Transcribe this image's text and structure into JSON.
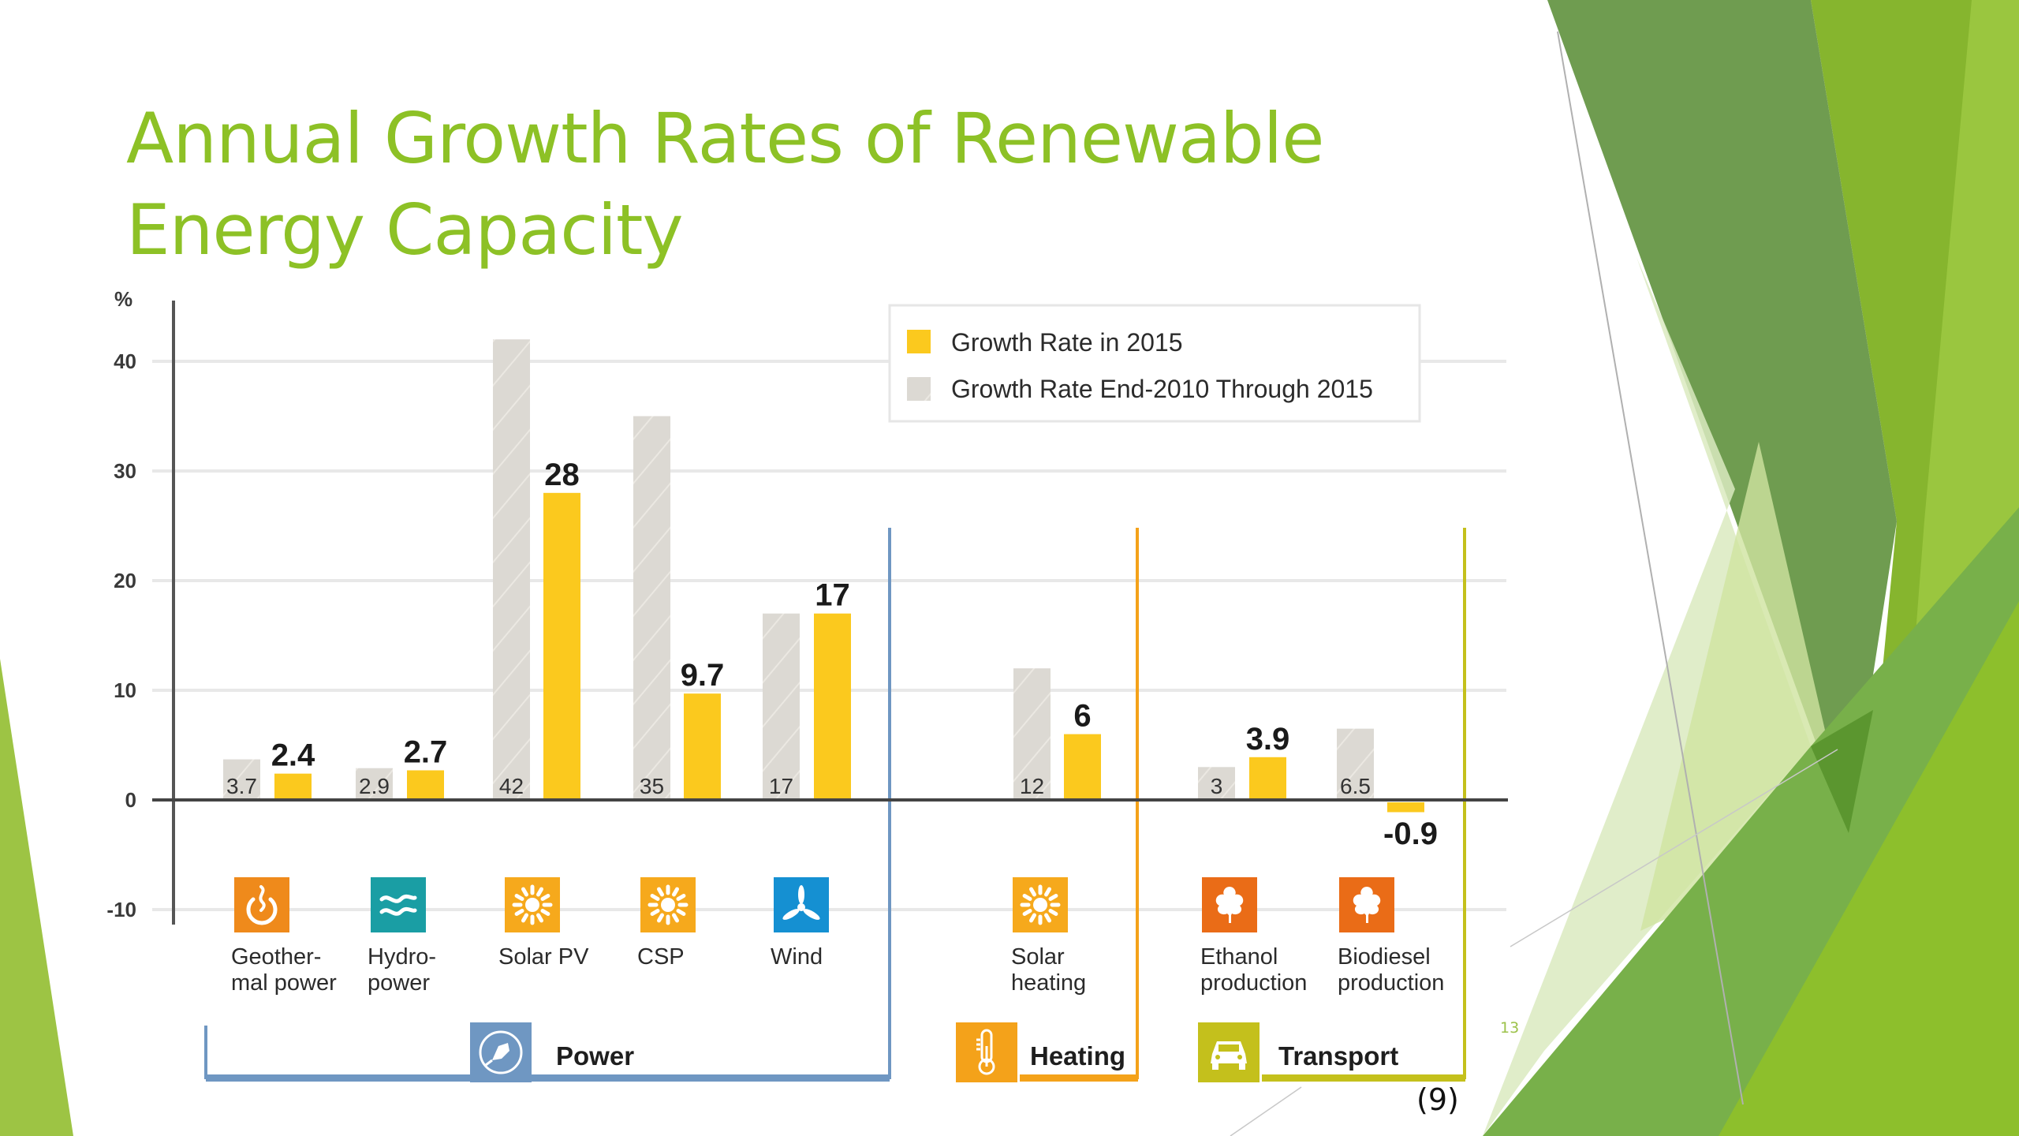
{
  "slide": {
    "title": "Annual Growth Rates of Renewable Energy Capacity",
    "title_lines": [
      "Annual Growth Rates of Renewable",
      "Energy Capacity"
    ],
    "slide_number": "13",
    "source_ref": "(9)",
    "accent_color": "#8dc126"
  },
  "chart_data": {
    "type": "bar",
    "title": "Annual Growth Rates of Renewable Energy Capacity",
    "ylabel": "%",
    "xlabel": "",
    "ylim": [
      -10,
      45
    ],
    "yticks": [
      40,
      30,
      20,
      10,
      0,
      -10
    ],
    "grid": true,
    "legend_position": "top-right",
    "categories": [
      "Geother-mal power",
      "Hydro-power",
      "Solar PV",
      "CSP",
      "Wind",
      "Solar heating",
      "Ethanol production",
      "Biodiesel production"
    ],
    "category_label_lines": [
      [
        "Geother-",
        "mal power"
      ],
      [
        "Hydro-",
        "power"
      ],
      [
        "Solar PV"
      ],
      [
        "CSP"
      ],
      [
        "Wind"
      ],
      [
        "Solar",
        "heating"
      ],
      [
        "Ethanol",
        "production"
      ],
      [
        "Biodiesel",
        "production"
      ]
    ],
    "series": [
      {
        "name": "Growth Rate End-2010 Through 2015",
        "color": "#dcd9d3",
        "values": [
          3.7,
          2.9,
          42,
          35,
          17,
          12,
          3,
          6.5
        ],
        "labels": [
          "3.7",
          "2.9",
          "42",
          "35",
          "17",
          "12",
          "3",
          "6.5"
        ]
      },
      {
        "name": "Growth Rate in 2015",
        "color": "#fbc91e",
        "values": [
          2.4,
          2.7,
          28,
          9.7,
          17,
          6,
          3.9,
          -0.9
        ],
        "labels": [
          "2.4",
          "2.7",
          "28",
          "9.7",
          "17",
          "6",
          "3.9",
          "-0.9"
        ]
      }
    ],
    "legend": [
      {
        "label": "Growth Rate in 2015",
        "color": "#fbc91e"
      },
      {
        "label": "Growth Rate End-2010 Through 2015",
        "color": "#dcd9d3"
      }
    ],
    "groups": [
      {
        "name": "Power",
        "icon": "power-plug-icon",
        "color": "#6f97c2",
        "categories": [
          "Geother-mal power",
          "Hydro-power",
          "Solar PV",
          "CSP",
          "Wind"
        ]
      },
      {
        "name": "Heating",
        "icon": "thermometer-icon",
        "color": "#f4a21a",
        "categories": [
          "Solar heating"
        ]
      },
      {
        "name": "Transport",
        "icon": "car-icon",
        "color": "#c4c01c",
        "categories": [
          "Ethanol production",
          "Biodiesel production"
        ]
      }
    ],
    "category_icons": [
      {
        "icon": "geothermal-icon",
        "color": "#ef8a1b"
      },
      {
        "icon": "hydro-waves-icon",
        "color": "#1a9ea4"
      },
      {
        "icon": "sun-icon",
        "color": "#f6a91c"
      },
      {
        "icon": "sun-icon",
        "color": "#f6a91c"
      },
      {
        "icon": "wind-turbine-icon",
        "color": "#1590d2"
      },
      {
        "icon": "sun-icon",
        "color": "#f6a91c"
      },
      {
        "icon": "leaf-icon",
        "color": "#ea6c17"
      },
      {
        "icon": "leaf-icon",
        "color": "#ea6c17"
      }
    ]
  }
}
